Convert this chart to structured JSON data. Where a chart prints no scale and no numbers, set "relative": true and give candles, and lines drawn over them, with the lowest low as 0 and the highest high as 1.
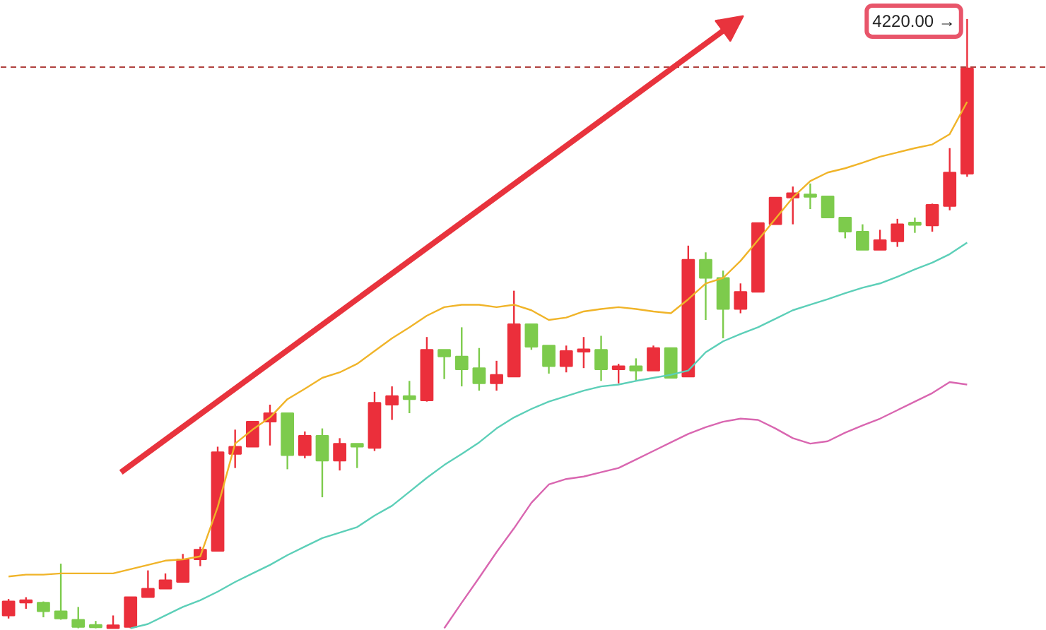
{
  "chart_data": {
    "type": "candlestick",
    "relative": true,
    "categories": [
      null,
      null,
      null,
      null,
      null,
      null,
      null,
      null,
      null,
      null,
      null,
      null,
      null,
      null,
      null,
      null,
      null,
      null,
      null,
      null,
      null,
      null,
      null,
      null,
      null,
      null,
      null,
      null,
      null,
      null,
      null,
      null,
      null,
      null,
      null,
      null,
      null,
      null,
      null,
      null,
      null,
      null,
      null,
      null,
      null,
      null,
      null,
      null,
      null,
      null,
      null,
      null,
      null,
      null,
      null,
      null
    ],
    "ohlc": [
      [
        0.021,
        0.048,
        0.016,
        0.044
      ],
      [
        0.042,
        0.051,
        0.032,
        0.046
      ],
      [
        0.042,
        0.044,
        0.018,
        0.028
      ],
      [
        0.028,
        0.106,
        0.014,
        0.016
      ],
      [
        0.014,
        0.035,
        0,
        0.002
      ],
      [
        0.005,
        0.012,
        0,
        0.002
      ],
      [
        0,
        0.021,
        0,
        0.005
      ],
      [
        0.002,
        0.051,
        0,
        0.051
      ],
      [
        0.051,
        0.095,
        0.051,
        0.065
      ],
      [
        0.065,
        0.09,
        0.065,
        0.079
      ],
      [
        0.076,
        0.122,
        0.076,
        0.113
      ],
      [
        0.113,
        0.134,
        0.102,
        0.129
      ],
      [
        0.127,
        0.298,
        0.127,
        0.289
      ],
      [
        0.286,
        0.326,
        0.263,
        0.298
      ],
      [
        0.298,
        0.339,
        0.298,
        0.339
      ],
      [
        0.339,
        0.367,
        0.3,
        0.353
      ],
      [
        0.353,
        0.353,
        0.261,
        0.284
      ],
      [
        0.284,
        0.323,
        0.279,
        0.316
      ],
      [
        0.316,
        0.328,
        0.215,
        0.275
      ],
      [
        0.275,
        0.312,
        0.259,
        0.303
      ],
      [
        0.303,
        0.303,
        0.263,
        0.298
      ],
      [
        0.296,
        0.388,
        0.291,
        0.37
      ],
      [
        0.367,
        0.397,
        0.342,
        0.381
      ],
      [
        0.381,
        0.406,
        0.353,
        0.376
      ],
      [
        0.374,
        0.478,
        0.372,
        0.457
      ],
      [
        0.457,
        0.457,
        0.409,
        0.446
      ],
      [
        0.446,
        0.494,
        0.397,
        0.425
      ],
      [
        0.427,
        0.46,
        0.39,
        0.402
      ],
      [
        0.402,
        0.439,
        0.39,
        0.416
      ],
      [
        0.413,
        0.554,
        0.413,
        0.499
      ],
      [
        0.499,
        0.499,
        0.457,
        0.462
      ],
      [
        0.464,
        0.464,
        0.418,
        0.43
      ],
      [
        0.43,
        0.464,
        0.42,
        0.455
      ],
      [
        0.455,
        0.478,
        0.427,
        0.457
      ],
      [
        0.457,
        0.48,
        0.406,
        0.425
      ],
      [
        0.425,
        0.434,
        0.402,
        0.43
      ],
      [
        0.43,
        0.443,
        0.406,
        0.423
      ],
      [
        0.423,
        0.464,
        0.423,
        0.46
      ],
      [
        0.46,
        0.46,
        0.411,
        0.411
      ],
      [
        0.413,
        0.628,
        0.413,
        0.605
      ],
      [
        0.605,
        0.617,
        0.506,
        0.575
      ],
      [
        0.575,
        0.587,
        0.476,
        0.524
      ],
      [
        0.524,
        0.566,
        0.517,
        0.552
      ],
      [
        0.552,
        0.665,
        0.552,
        0.665
      ],
      [
        0.663,
        0.707,
        0.663,
        0.707
      ],
      [
        0.707,
        0.725,
        0.663,
        0.714
      ],
      [
        0.711,
        0.73,
        0.688,
        0.709
      ],
      [
        0.709,
        0.709,
        0.674,
        0.674
      ],
      [
        0.674,
        0.674,
        0.64,
        0.651
      ],
      [
        0.651,
        0.663,
        0.621,
        0.621
      ],
      [
        0.621,
        0.654,
        0.621,
        0.637
      ],
      [
        0.635,
        0.672,
        0.626,
        0.663
      ],
      [
        0.665,
        0.674,
        0.649,
        0.663
      ],
      [
        0.661,
        0.697,
        0.651,
        0.695
      ],
      [
        0.693,
        0.788,
        0.686,
        0.748
      ],
      [
        0.746,
        1,
        0.741,
        0.919
      ]
    ],
    "colors": [
      "#eb2f3b",
      "#eb2f3b",
      "#7dcb4c",
      "#7dcb4c",
      "#7dcb4c",
      "#7dcb4c",
      "#eb2f3b",
      "#eb2f3b",
      "#eb2f3b",
      "#eb2f3b",
      "#eb2f3b",
      "#eb2f3b",
      "#eb2f3b",
      "#eb2f3b",
      "#eb2f3b",
      "#eb2f3b",
      "#7dcb4c",
      "#eb2f3b",
      "#7dcb4c",
      "#eb2f3b",
      "#7dcb4c",
      "#eb2f3b",
      "#eb2f3b",
      "#7dcb4c",
      "#eb2f3b",
      "#7dcb4c",
      "#7dcb4c",
      "#7dcb4c",
      "#eb2f3b",
      "#eb2f3b",
      "#7dcb4c",
      "#7dcb4c",
      "#eb2f3b",
      "#eb2f3b",
      "#7dcb4c",
      "#eb2f3b",
      "#7dcb4c",
      "#eb2f3b",
      "#7dcb4c",
      "#eb2f3b",
      "#7dcb4c",
      "#7dcb4c",
      "#eb2f3b",
      "#eb2f3b",
      "#eb2f3b",
      "#eb2f3b",
      "#7dcb4c",
      "#7dcb4c",
      "#7dcb4c",
      "#7dcb4c",
      "#eb2f3b",
      "#eb2f3b",
      "#7dcb4c",
      "#eb2f3b",
      "#eb2f3b",
      "#eb2f3b"
    ],
    "series": [
      {
        "type": "line",
        "color": "#f0b429",
        "values": [
          0.085,
          0.088,
          0.088,
          0.09,
          0.09,
          0.09,
          0.09,
          0.097,
          0.104,
          0.111,
          0.113,
          0.118,
          0.199,
          0.303,
          0.326,
          0.346,
          0.376,
          0.393,
          0.411,
          0.42,
          0.434,
          0.455,
          0.476,
          0.494,
          0.513,
          0.527,
          0.531,
          0.531,
          0.527,
          0.531,
          0.522,
          0.506,
          0.51,
          0.52,
          0.524,
          0.527,
          0.524,
          0.52,
          0.517,
          0.54,
          0.566,
          0.575,
          0.603,
          0.637,
          0.672,
          0.707,
          0.734,
          0.748,
          0.755,
          0.764,
          0.774,
          0.781,
          0.788,
          0.794,
          0.811,
          0.864
        ]
      },
      {
        "type": "line",
        "color": "#5ccfb8",
        "values": [
          null,
          null,
          null,
          null,
          null,
          null,
          null,
          0,
          0.007,
          0.021,
          0.035,
          0.046,
          0.06,
          0.076,
          0.09,
          0.104,
          0.12,
          0.134,
          0.148,
          0.157,
          0.166,
          0.185,
          0.201,
          0.224,
          0.247,
          0.268,
          0.286,
          0.305,
          0.328,
          0.346,
          0.36,
          0.372,
          0.381,
          0.39,
          0.397,
          0.4,
          0.406,
          0.411,
          0.416,
          0.423,
          0.453,
          0.471,
          0.483,
          0.494,
          0.508,
          0.522,
          0.531,
          0.54,
          0.55,
          0.559,
          0.566,
          0.577,
          0.589,
          0.6,
          0.614,
          0.633
        ]
      },
      {
        "type": "line",
        "color": "#d966b0",
        "values": [
          null,
          null,
          null,
          null,
          null,
          null,
          null,
          null,
          null,
          null,
          null,
          null,
          null,
          null,
          null,
          null,
          null,
          null,
          null,
          null,
          null,
          null,
          null,
          null,
          null,
          0,
          0.042,
          0.083,
          0.125,
          0.164,
          0.206,
          0.236,
          0.245,
          0.249,
          0.256,
          0.263,
          0.277,
          0.291,
          0.305,
          0.319,
          0.33,
          0.339,
          0.344,
          0.342,
          0.328,
          0.312,
          0.303,
          0.307,
          0.321,
          0.333,
          0.344,
          0.358,
          0.372,
          0.386,
          0.404,
          0.4
        ]
      }
    ],
    "ref_lines": [
      {
        "axis": "y",
        "value": 0.921,
        "color": "#b0413e",
        "line_style": "dashed"
      }
    ],
    "annotations": [
      "4220.00 →"
    ]
  }
}
